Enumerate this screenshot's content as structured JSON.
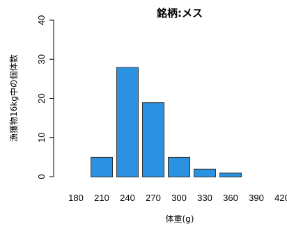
{
  "chart_data": {
    "type": "bar",
    "title": "銘柄:メス",
    "xlabel": "体重(g)",
    "ylabel": "漁獲物16kg中の個体数",
    "categories": [
      "180",
      "210",
      "240",
      "270",
      "300",
      "330",
      "360",
      "390",
      "420"
    ],
    "values": [
      0,
      5,
      28,
      19,
      5,
      2,
      1,
      0,
      0
    ],
    "ylim": [
      0,
      40
    ],
    "yticks": [
      0,
      10,
      20,
      30,
      40
    ],
    "grid": false,
    "legend": "none",
    "bar_color": "#2a92e0",
    "bar_border_color": "#333333"
  }
}
